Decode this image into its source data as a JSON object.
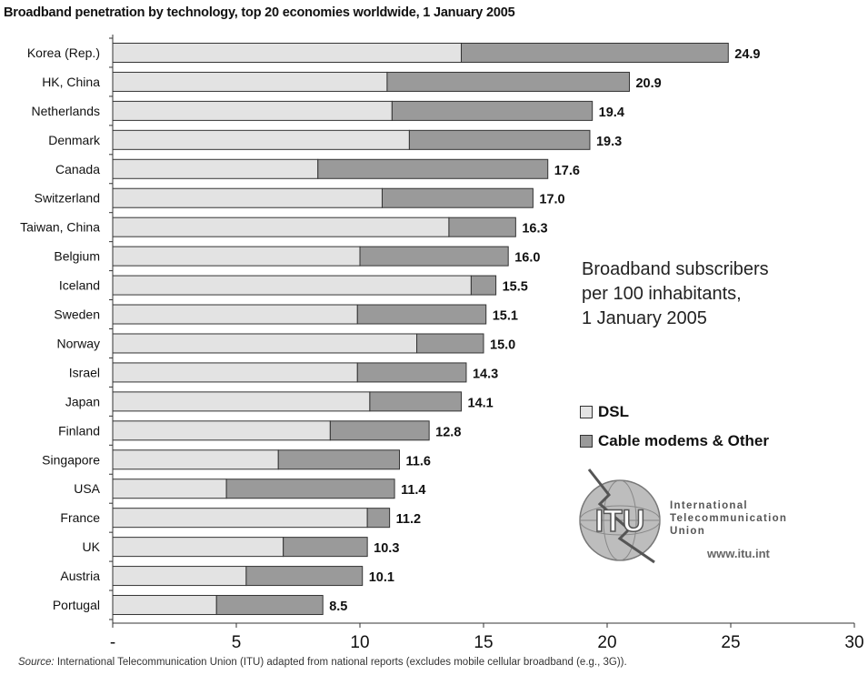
{
  "title": "Broadband penetration by technology, top 20 economies worldwide, 1 January 2005",
  "annotation": [
    "Broadband subscribers",
    "per 100 inhabitants,",
    "1 January 2005"
  ],
  "legend": {
    "dsl": {
      "label": "DSL",
      "color": "#e3e3e3"
    },
    "cable": {
      "label": "Cable modems & Other",
      "color": "#9a9a9a"
    }
  },
  "logo": {
    "letters": "ITU",
    "name_lines": [
      "International",
      "Telecommunication",
      "Union"
    ],
    "url": "www.itu.int"
  },
  "source": {
    "prefix": "Source:",
    "text": "International Telecommunication Union (ITU) adapted from national reports (excludes mobile cellular broadband (e.g., 3G))."
  },
  "chart_data": {
    "type": "bar",
    "orientation": "horizontal",
    "stacked": true,
    "categories": [
      "Korea (Rep.)",
      "HK, China",
      "Netherlands",
      "Denmark",
      "Canada",
      "Switzerland",
      "Taiwan, China",
      "Belgium",
      "Iceland",
      "Sweden",
      "Norway",
      "Israel",
      "Japan",
      "Finland",
      "Singapore",
      "USA",
      "France",
      "UK",
      "Austria",
      "Portugal"
    ],
    "series": [
      {
        "name": "DSL",
        "values": [
          14.1,
          11.1,
          11.3,
          12.0,
          8.3,
          10.9,
          13.6,
          10.0,
          14.5,
          9.9,
          12.3,
          9.9,
          10.4,
          8.8,
          6.7,
          4.6,
          10.3,
          6.9,
          5.4,
          4.2
        ]
      },
      {
        "name": "Cable modems & Other",
        "values": [
          10.8,
          9.8,
          8.1,
          7.3,
          9.3,
          6.1,
          2.7,
          6.0,
          1.0,
          5.2,
          2.7,
          4.4,
          3.7,
          4.0,
          4.9,
          6.8,
          0.9,
          3.4,
          4.7,
          4.3
        ]
      }
    ],
    "totals": [
      "24.9",
      "20.9",
      "19.4",
      "19.3",
      "17.6",
      "17.0",
      "16.3",
      "16.0",
      "15.5",
      "15.1",
      "15.0",
      "14.3",
      "14.1",
      "12.8",
      "11.6",
      "11.4",
      "11.2",
      "10.3",
      "10.1",
      "8.5"
    ],
    "xlim": [
      0,
      30
    ],
    "xticks": [
      "-",
      "5",
      "10",
      "15",
      "20",
      "25",
      "30"
    ],
    "grid": false,
    "legend_position": "right"
  }
}
